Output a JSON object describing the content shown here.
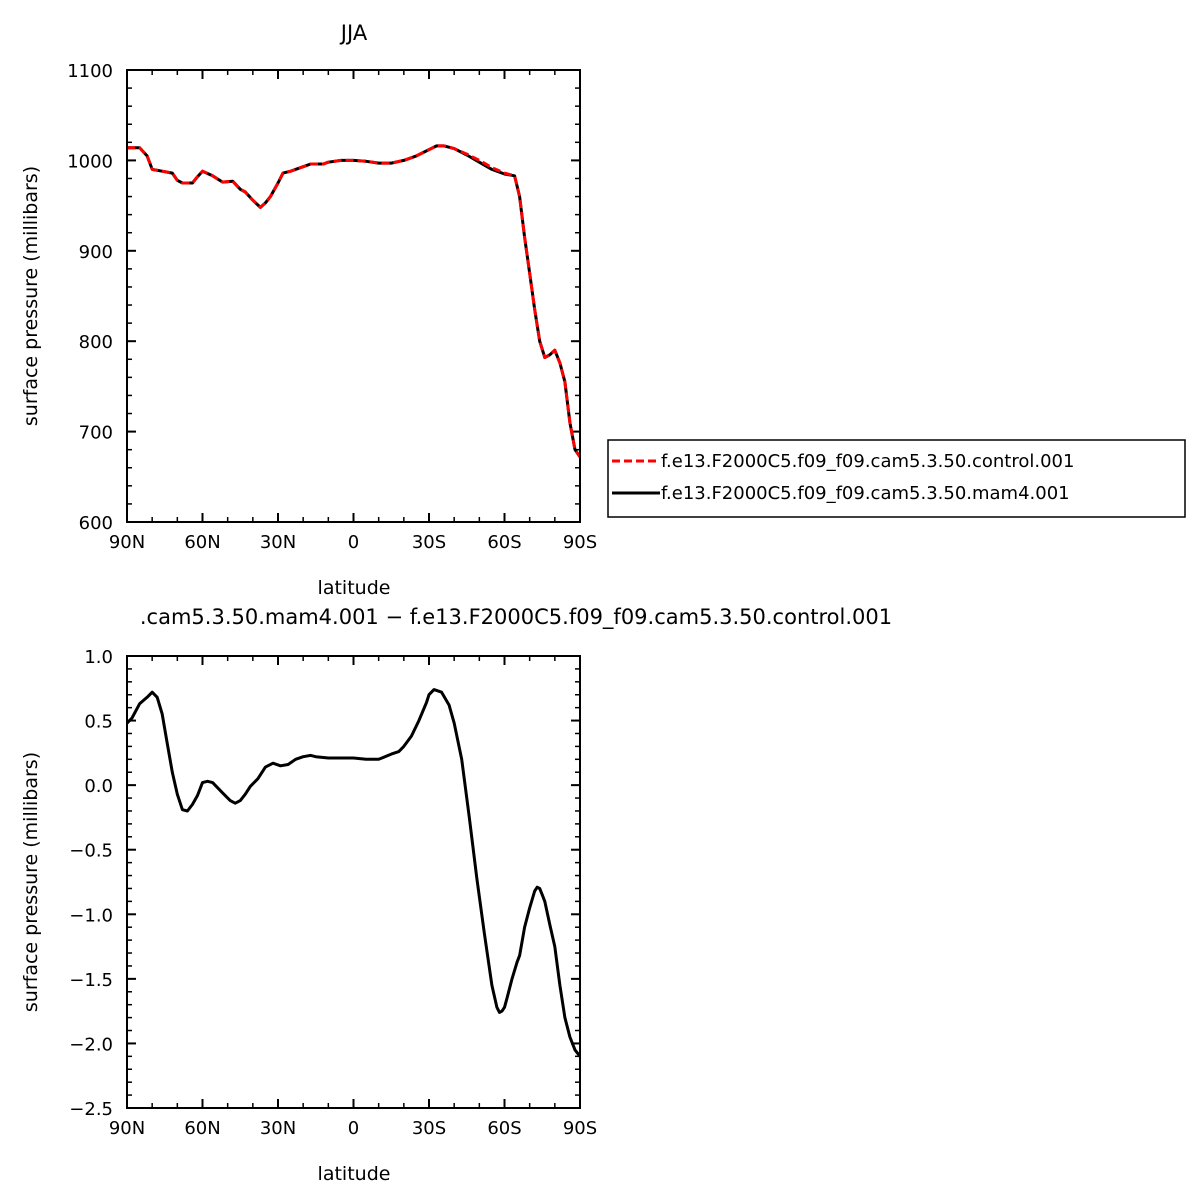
{
  "chart_data": [
    {
      "type": "line",
      "title": "JJA",
      "xlabel": "latitude",
      "ylabel": "surface pressure (millibars)",
      "xlim": [
        90,
        -90
      ],
      "ylim": [
        600,
        1100
      ],
      "xticks": [
        {
          "value": 90,
          "label": "90N"
        },
        {
          "value": 60,
          "label": "60N"
        },
        {
          "value": 30,
          "label": "30N"
        },
        {
          "value": 0,
          "label": "0"
        },
        {
          "value": -30,
          "label": "30S"
        },
        {
          "value": -60,
          "label": "60S"
        },
        {
          "value": -90,
          "label": "90S"
        }
      ],
      "yticks": [
        {
          "value": 1100,
          "label": "1100"
        },
        {
          "value": 1000,
          "label": "1000"
        },
        {
          "value": 900,
          "label": "900"
        },
        {
          "value": 800,
          "label": "800"
        },
        {
          "value": 700,
          "label": "700"
        },
        {
          "value": 600,
          "label": "600"
        }
      ],
      "legend_position": "right",
      "series": [
        {
          "name": "f.e13.F2000C5.f09_f09.cam5.3.50.control.001",
          "color": "#ff0000",
          "dash": true,
          "x": [
            90,
            85,
            82,
            80,
            76,
            72,
            70,
            68,
            64,
            62,
            60,
            56,
            52,
            48,
            45,
            43,
            40,
            37,
            35,
            33,
            30,
            28,
            25,
            20,
            17,
            15,
            12,
            10,
            5,
            0,
            -5,
            -10,
            -15,
            -20,
            -25,
            -30,
            -33,
            -36,
            -40,
            -45,
            -50,
            -55,
            -60,
            -64,
            -66,
            -68,
            -70,
            -72,
            -74,
            -76,
            -78,
            -80,
            -82,
            -84,
            -86,
            -88,
            -90
          ],
          "values": [
            1014,
            1014,
            1005,
            990,
            988,
            986,
            978,
            975,
            975,
            982,
            988,
            983,
            976,
            977,
            968,
            965,
            956,
            948,
            953,
            960,
            975,
            986,
            988,
            993,
            996,
            996,
            996,
            998,
            1000,
            1000,
            999,
            997,
            997,
            1000,
            1005,
            1012,
            1016,
            1016,
            1013,
            1007,
            1000,
            992,
            986,
            983,
            960,
            915,
            875,
            835,
            800,
            782,
            785,
            790,
            776,
            755,
            710,
            680,
            672
          ]
        },
        {
          "name": "f.e13.F2000C5.f09_f09.cam5.3.50.mam4.001",
          "color": "#000000",
          "dash": false,
          "x": [
            90,
            85,
            82,
            80,
            76,
            72,
            70,
            68,
            64,
            62,
            60,
            56,
            52,
            48,
            45,
            43,
            40,
            37,
            35,
            33,
            30,
            28,
            25,
            20,
            17,
            15,
            12,
            10,
            5,
            0,
            -5,
            -10,
            -15,
            -20,
            -25,
            -30,
            -33,
            -36,
            -40,
            -45,
            -50,
            -55,
            -60,
            -64,
            -66,
            -68,
            -70,
            -72,
            -74,
            -76,
            -78,
            -80,
            -82,
            -84,
            -86,
            -88,
            -90
          ],
          "values": [
            1014,
            1014,
            1005,
            990,
            988,
            986,
            978,
            975,
            975,
            982,
            988,
            983,
            976,
            977,
            968,
            965,
            956,
            948,
            953,
            960,
            975,
            986,
            988,
            993,
            996,
            996,
            996,
            998,
            1000,
            1000,
            999,
            997,
            997,
            1000,
            1005,
            1012,
            1016,
            1016,
            1013,
            1006,
            998,
            990,
            985,
            983,
            960,
            915,
            875,
            835,
            800,
            782,
            785,
            790,
            776,
            755,
            710,
            680,
            672
          ]
        }
      ]
    },
    {
      "type": "line",
      "title": ".cam5.3.50.mam4.001  −  f.e13.F2000C5.f09_f09.cam5.3.50.control.001",
      "xlabel": "latitude",
      "ylabel": "surface pressure (millibars)",
      "xlim": [
        90,
        -90
      ],
      "ylim": [
        -2.5,
        1.0
      ],
      "xticks": [
        {
          "value": 90,
          "label": "90N"
        },
        {
          "value": 60,
          "label": "60N"
        },
        {
          "value": 30,
          "label": "30N"
        },
        {
          "value": 0,
          "label": "0"
        },
        {
          "value": -30,
          "label": "30S"
        },
        {
          "value": -60,
          "label": "60S"
        },
        {
          "value": -90,
          "label": "90S"
        }
      ],
      "yticks": [
        {
          "value": 1.0,
          "label": "1.0"
        },
        {
          "value": 0.5,
          "label": "0.5"
        },
        {
          "value": 0.0,
          "label": "0.0"
        },
        {
          "value": -0.5,
          "label": "−0.5"
        },
        {
          "value": -1.0,
          "label": "−1.0"
        },
        {
          "value": -1.5,
          "label": "−1.5"
        },
        {
          "value": -2.0,
          "label": "−2.0"
        },
        {
          "value": -2.5,
          "label": "−2.5"
        }
      ],
      "series": [
        {
          "color": "#000000",
          "dash": false,
          "x": [
            90,
            88,
            85,
            82,
            80,
            78,
            76,
            74,
            72,
            70,
            68,
            66,
            64,
            62,
            60,
            58,
            56,
            52,
            49,
            47,
            45,
            43,
            41,
            38,
            35,
            32,
            29,
            26,
            23,
            20,
            17,
            15,
            10,
            5,
            0,
            -5,
            -10,
            -15,
            -18,
            -20,
            -23,
            -26,
            -29,
            -30,
            -32,
            -35,
            -38,
            -40,
            -43,
            -46,
            -49,
            -52,
            -55,
            -57,
            -58,
            -59,
            -60,
            -61,
            -63,
            -65,
            -66,
            -68,
            -70,
            -72,
            -73,
            -74,
            -75,
            -76,
            -78,
            -80,
            -82,
            -84,
            -86,
            -88,
            -90
          ],
          "values": [
            0.48,
            0.52,
            0.63,
            0.68,
            0.72,
            0.68,
            0.55,
            0.32,
            0.1,
            -0.07,
            -0.19,
            -0.2,
            -0.15,
            -0.08,
            0.02,
            0.03,
            0.02,
            -0.06,
            -0.12,
            -0.14,
            -0.12,
            -0.07,
            -0.01,
            0.05,
            0.14,
            0.17,
            0.15,
            0.16,
            0.2,
            0.22,
            0.23,
            0.22,
            0.21,
            0.21,
            0.21,
            0.2,
            0.2,
            0.24,
            0.26,
            0.3,
            0.38,
            0.5,
            0.64,
            0.7,
            0.74,
            0.72,
            0.62,
            0.48,
            0.2,
            -0.25,
            -0.72,
            -1.15,
            -1.55,
            -1.72,
            -1.76,
            -1.75,
            -1.72,
            -1.65,
            -1.5,
            -1.37,
            -1.32,
            -1.1,
            -0.95,
            -0.82,
            -0.79,
            -0.8,
            -0.85,
            -0.9,
            -1.08,
            -1.25,
            -1.55,
            -1.8,
            -1.95,
            -2.05,
            -2.1
          ]
        }
      ]
    }
  ]
}
